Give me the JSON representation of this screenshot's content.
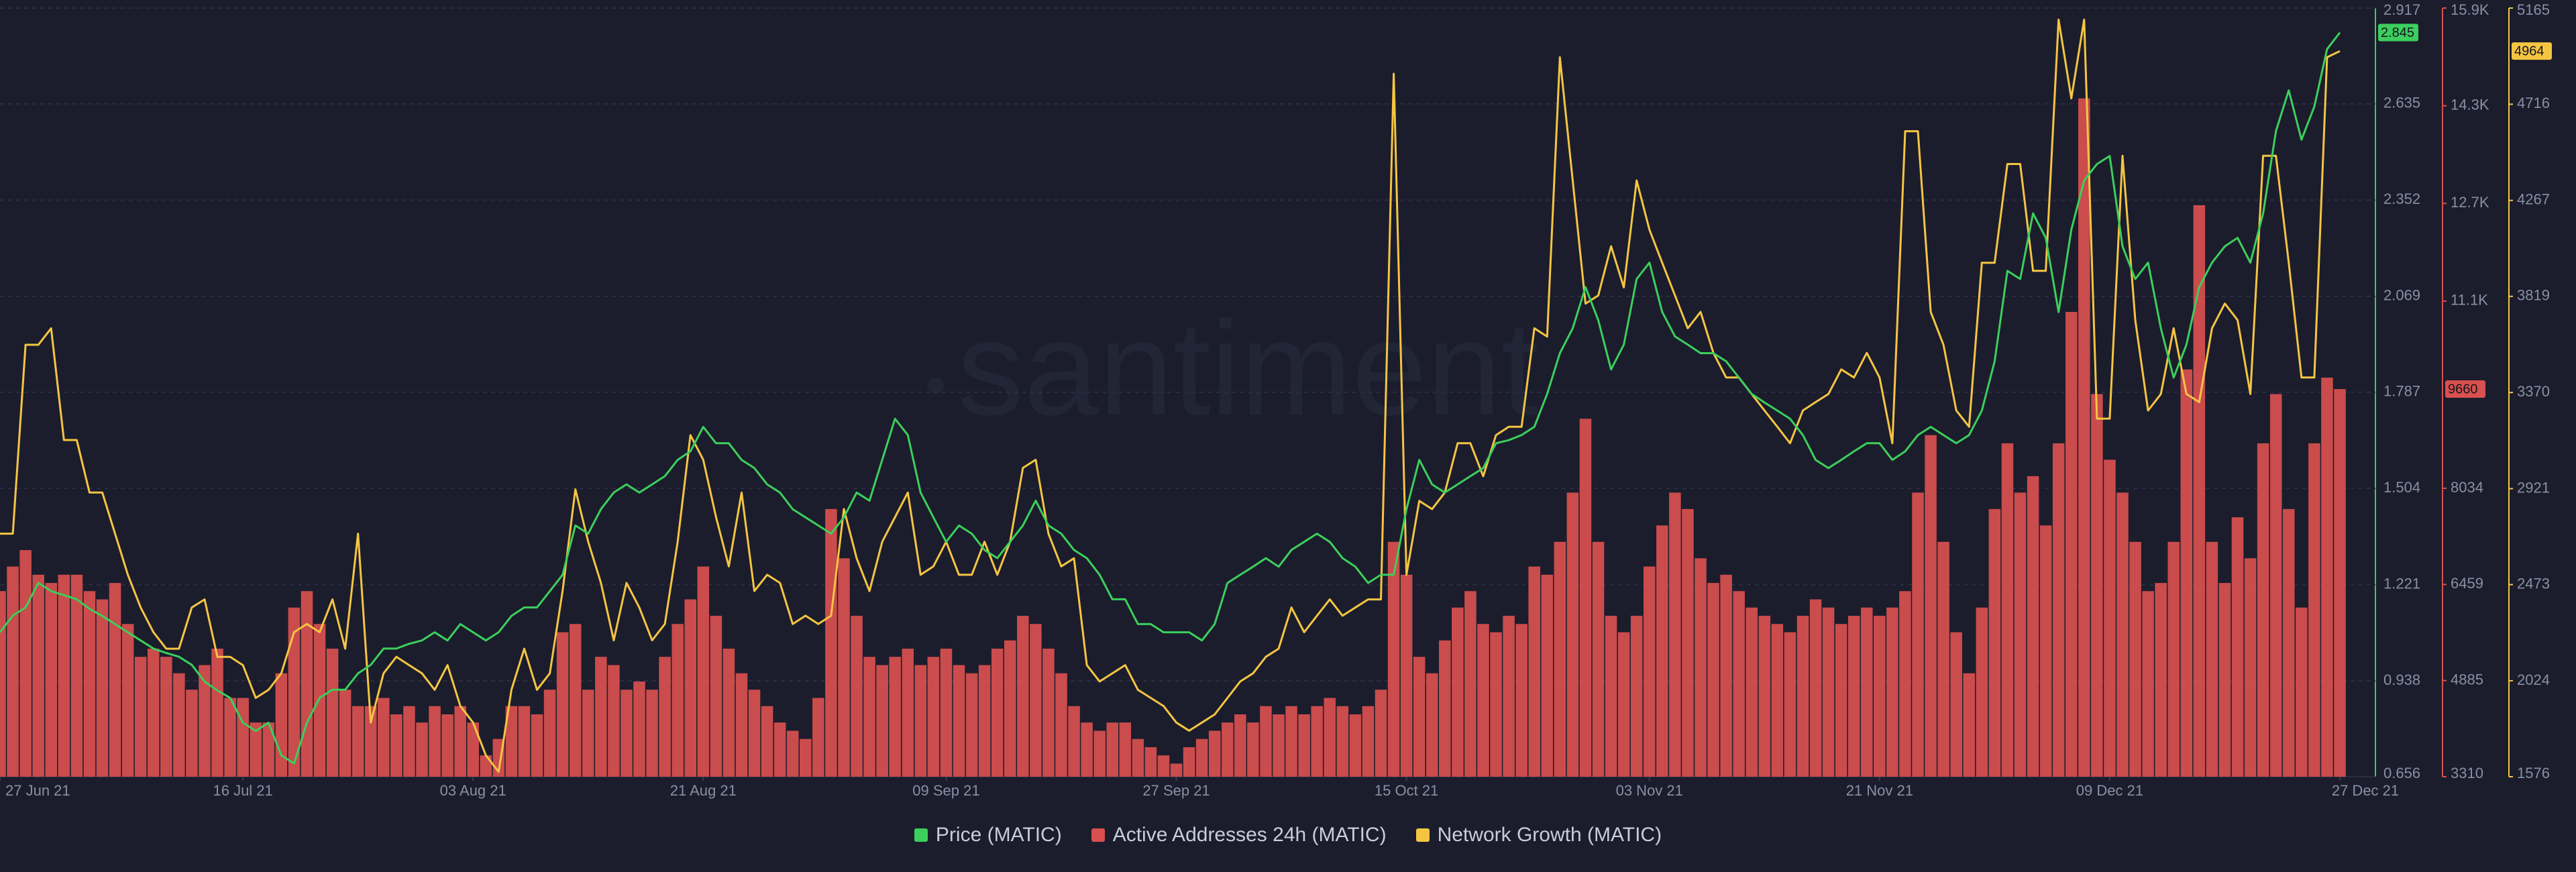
{
  "chart_data": {
    "type": "line",
    "watermark": "santiment",
    "x": [
      "27 Jun 21",
      "28 Jun 21",
      "29 Jun 21",
      "30 Jun 21",
      "01 Jul 21",
      "02 Jul 21",
      "03 Jul 21",
      "04 Jul 21",
      "05 Jul 21",
      "06 Jul 21",
      "07 Jul 21",
      "08 Jul 21",
      "09 Jul 21",
      "10 Jul 21",
      "11 Jul 21",
      "12 Jul 21",
      "13 Jul 21",
      "14 Jul 21",
      "15 Jul 21",
      "16 Jul 21",
      "17 Jul 21",
      "18 Jul 21",
      "19 Jul 21",
      "20 Jul 21",
      "21 Jul 21",
      "22 Jul 21",
      "23 Jul 21",
      "24 Jul 21",
      "25 Jul 21",
      "26 Jul 21",
      "27 Jul 21",
      "28 Jul 21",
      "29 Jul 21",
      "30 Jul 21",
      "31 Jul 21",
      "01 Aug 21",
      "02 Aug 21",
      "03 Aug 21",
      "04 Aug 21",
      "05 Aug 21",
      "06 Aug 21",
      "07 Aug 21",
      "08 Aug 21",
      "09 Aug 21",
      "10 Aug 21",
      "11 Aug 21",
      "12 Aug 21",
      "13 Aug 21",
      "14 Aug 21",
      "15 Aug 21",
      "16 Aug 21",
      "17 Aug 21",
      "18 Aug 21",
      "19 Aug 21",
      "20 Aug 21",
      "21 Aug 21",
      "22 Aug 21",
      "23 Aug 21",
      "24 Aug 21",
      "25 Aug 21",
      "26 Aug 21",
      "27 Aug 21",
      "28 Aug 21",
      "29 Aug 21",
      "30 Aug 21",
      "31 Aug 21",
      "01 Sep 21",
      "02 Sep 21",
      "03 Sep 21",
      "04 Sep 21",
      "05 Sep 21",
      "06 Sep 21",
      "07 Sep 21",
      "08 Sep 21",
      "09 Sep 21",
      "10 Sep 21",
      "11 Sep 21",
      "12 Sep 21",
      "13 Sep 21",
      "14 Sep 21",
      "15 Sep 21",
      "16 Sep 21",
      "17 Sep 21",
      "18 Sep 21",
      "19 Sep 21",
      "20 Sep 21",
      "21 Sep 21",
      "22 Sep 21",
      "23 Sep 21",
      "24 Sep 21",
      "25 Sep 21",
      "26 Sep 21",
      "27 Sep 21",
      "28 Sep 21",
      "29 Sep 21",
      "30 Sep 21",
      "01 Oct 21",
      "02 Oct 21",
      "03 Oct 21",
      "04 Oct 21",
      "05 Oct 21",
      "06 Oct 21",
      "07 Oct 21",
      "08 Oct 21",
      "09 Oct 21",
      "10 Oct 21",
      "11 Oct 21",
      "12 Oct 21",
      "13 Oct 21",
      "14 Oct 21",
      "15 Oct 21",
      "16 Oct 21",
      "17 Oct 21",
      "18 Oct 21",
      "19 Oct 21",
      "20 Oct 21",
      "21 Oct 21",
      "22 Oct 21",
      "23 Oct 21",
      "24 Oct 21",
      "25 Oct 21",
      "26 Oct 21",
      "27 Oct 21",
      "28 Oct 21",
      "29 Oct 21",
      "30 Oct 21",
      "31 Oct 21",
      "01 Nov 21",
      "02 Nov 21",
      "03 Nov 21",
      "04 Nov 21",
      "05 Nov 21",
      "06 Nov 21",
      "07 Nov 21",
      "08 Nov 21",
      "09 Nov 21",
      "10 Nov 21",
      "11 Nov 21",
      "12 Nov 21",
      "13 Nov 21",
      "14 Nov 21",
      "15 Nov 21",
      "16 Nov 21",
      "17 Nov 21",
      "18 Nov 21",
      "19 Nov 21",
      "20 Nov 21",
      "21 Nov 21",
      "22 Nov 21",
      "23 Nov 21",
      "24 Nov 21",
      "25 Nov 21",
      "26 Nov 21",
      "27 Nov 21",
      "28 Nov 21",
      "29 Nov 21",
      "30 Nov 21",
      "01 Dec 21",
      "02 Dec 21",
      "03 Dec 21",
      "04 Dec 21",
      "05 Dec 21",
      "06 Dec 21",
      "07 Dec 21",
      "08 Dec 21",
      "09 Dec 21",
      "10 Dec 21",
      "11 Dec 21",
      "12 Dec 21",
      "13 Dec 21",
      "14 Dec 21",
      "15 Dec 21",
      "16 Dec 21",
      "17 Dec 21",
      "18 Dec 21",
      "19 Dec 21",
      "20 Dec 21",
      "21 Dec 21",
      "22 Dec 21",
      "23 Dec 21",
      "24 Dec 21",
      "25 Dec 21",
      "26 Dec 21",
      "27 Dec 21"
    ],
    "xticks": [
      "27 Jun 21",
      "16 Jul 21",
      "03 Aug 21",
      "21 Aug 21",
      "09 Sep 21",
      "27 Sep 21",
      "15 Oct 21",
      "03 Nov 21",
      "21 Nov 21",
      "09 Dec 21",
      "27 Dec 21"
    ],
    "ylim": [
      0.656,
      2.917
    ],
    "yticks": [
      0.656,
      0.938,
      1.221,
      1.504,
      1.787,
      2.069,
      2.352,
      2.635,
      2.917
    ],
    "y2lim": [
      3310,
      15900
    ],
    "y2ticks": [
      3310,
      4885,
      6459,
      8034,
      {
        "value": 11100,
        "label": "11.1K"
      },
      {
        "value": 12700,
        "label": "12.7K"
      },
      {
        "value": 14300,
        "label": "14.3K"
      },
      {
        "value": 15900,
        "label": "15.9K"
      }
    ],
    "y3lim": [
      1576,
      5165
    ],
    "y3ticks": [
      1576,
      2024,
      2473,
      2921,
      3370,
      3819,
      4267,
      4716,
      5165
    ],
    "grid": true,
    "legend": "bottom",
    "series": [
      {
        "name": "Price (MATIC)",
        "type": "line",
        "axis": "y",
        "color": "#3ccf5c",
        "values": [
          1.081,
          1.13,
          1.154,
          1.226,
          1.202,
          1.19,
          1.178,
          1.15,
          1.129,
          1.105,
          1.081,
          1.057,
          1.033,
          1.02,
          1.009,
          0.985,
          0.936,
          0.91,
          0.888,
          0.815,
          0.791,
          0.815,
          0.719,
          0.695,
          0.815,
          0.888,
          0.912,
          0.912,
          0.96,
          0.985,
          1.033,
          1.033,
          1.047,
          1.057,
          1.081,
          1.057,
          1.105,
          1.081,
          1.057,
          1.081,
          1.129,
          1.154,
          1.154,
          1.202,
          1.25,
          1.395,
          1.371,
          1.443,
          1.492,
          1.516,
          1.492,
          1.516,
          1.54,
          1.588,
          1.613,
          1.685,
          1.637,
          1.637,
          1.588,
          1.564,
          1.516,
          1.492,
          1.443,
          1.419,
          1.395,
          1.371,
          1.419,
          1.492,
          1.468,
          1.588,
          1.709,
          1.661,
          1.492,
          1.419,
          1.347,
          1.395,
          1.371,
          1.323,
          1.299,
          1.347,
          1.395,
          1.468,
          1.395,
          1.371,
          1.323,
          1.299,
          1.25,
          1.178,
          1.178,
          1.105,
          1.105,
          1.081,
          1.081,
          1.081,
          1.057,
          1.105,
          1.226,
          1.25,
          1.274,
          1.299,
          1.274,
          1.323,
          1.347,
          1.371,
          1.347,
          1.299,
          1.274,
          1.226,
          1.25,
          1.25,
          1.443,
          1.588,
          1.516,
          1.492,
          1.516,
          1.54,
          1.564,
          1.637,
          1.646,
          1.661,
          1.685,
          1.782,
          1.902,
          1.975,
          2.096,
          1.999,
          1.854,
          1.927,
          2.12,
          2.168,
          2.023,
          1.951,
          1.927,
          1.902,
          1.902,
          1.878,
          1.83,
          1.782,
          1.757,
          1.733,
          1.709,
          1.661,
          1.588,
          1.564,
          1.588,
          1.613,
          1.637,
          1.637,
          1.588,
          1.613,
          1.661,
          1.685,
          1.661,
          1.637,
          1.661,
          1.733,
          1.878,
          2.144,
          2.12,
          2.313,
          2.241,
          2.023,
          2.265,
          2.41,
          2.458,
          2.482,
          2.216,
          2.12,
          2.168,
          1.975,
          1.83,
          1.927,
          2.096,
          2.168,
          2.216,
          2.241,
          2.168,
          2.313,
          2.555,
          2.675,
          2.53,
          2.627,
          2.796,
          2.845
        ]
      },
      {
        "name": "Active Addresses 24h (MATIC)",
        "type": "bar",
        "axis": "y2",
        "color": "#d9504f",
        "values": [
          6350,
          6753,
          7022,
          6619,
          6484,
          6619,
          6619,
          6350,
          6215,
          6484,
          5812,
          5274,
          5408,
          5274,
          5005,
          4736,
          5139,
          5408,
          4601,
          4601,
          4198,
          4198,
          5005,
          6081,
          6350,
          5812,
          5408,
          4736,
          4467,
          4467,
          4601,
          4332,
          4467,
          4198,
          4467,
          4332,
          4467,
          4198,
          3660,
          3929,
          4467,
          4467,
          4332,
          4736,
          5677,
          5812,
          4736,
          5274,
          5139,
          4736,
          4870,
          4736,
          5274,
          5812,
          6215,
          6753,
          5946,
          5408,
          5005,
          4736,
          4467,
          4198,
          4063,
          3929,
          4601,
          7695,
          6888,
          5946,
          5274,
          5139,
          5274,
          5408,
          5139,
          5274,
          5408,
          5139,
          5005,
          5139,
          5408,
          5543,
          5946,
          5812,
          5408,
          5005,
          4467,
          4198,
          4063,
          4198,
          4198,
          3929,
          3794,
          3660,
          3525,
          3794,
          3929,
          4063,
          4198,
          4332,
          4198,
          4467,
          4332,
          4467,
          4332,
          4467,
          4601,
          4467,
          4332,
          4467,
          4736,
          7157,
          6619,
          5274,
          5005,
          5543,
          6081,
          6350,
          5812,
          5677,
          5946,
          5812,
          6753,
          6619,
          7157,
          7964,
          9174,
          7157,
          5946,
          5677,
          5946,
          6753,
          7426,
          7964,
          7695,
          6888,
          6484,
          6619,
          6350,
          6081,
          5946,
          5812,
          5677,
          5946,
          6215,
          6081,
          5812,
          5946,
          6081,
          5946,
          6081,
          6350,
          7964,
          8905,
          7157,
          5677,
          5005,
          6081,
          7695,
          8771,
          7964,
          8233,
          7426,
          8771,
          10923,
          14420,
          9578,
          8502,
          7964,
          7157,
          6350,
          6484,
          7157,
          9981,
          12671,
          7157,
          6484,
          7560,
          6888,
          8771,
          9578,
          7695,
          6081,
          8771,
          9847,
          9660
        ]
      },
      {
        "name": "Network Growth (MATIC)",
        "type": "line",
        "axis": "y3",
        "color": "#f5c542",
        "values": [
          2711,
          2711,
          3593,
          3593,
          3670,
          3148,
          3148,
          2903,
          2903,
          2711,
          2519,
          2366,
          2251,
          2174,
          2174,
          2366,
          2404,
          2136,
          2136,
          2097,
          1944,
          1982,
          2059,
          2251,
          2289,
          2251,
          2404,
          2174,
          2711,
          1829,
          2059,
          2136,
          2097,
          2059,
          1982,
          2097,
          1906,
          1829,
          1676,
          1599,
          1982,
          2174,
          1982,
          2059,
          2443,
          2918,
          2673,
          2481,
          2213,
          2481,
          2366,
          2213,
          2289,
          2673,
          3171,
          3056,
          2788,
          2558,
          2903,
          2443,
          2519,
          2481,
          2289,
          2328,
          2289,
          2328,
          2826,
          2596,
          2443,
          2673,
          2788,
          2903,
          2519,
          2558,
          2673,
          2519,
          2519,
          2673,
          2519,
          2673,
          3018,
          3056,
          2711,
          2558,
          2596,
          2097,
          2021,
          2059,
          2097,
          1982,
          1944,
          1906,
          1829,
          1791,
          1829,
          1867,
          1944,
          2021,
          2059,
          2136,
          2174,
          2366,
          2251,
          2328,
          2404,
          2328,
          2366,
          2404,
          2404,
          4858,
          2519,
          2864,
          2826,
          2903,
          3133,
          3133,
          2979,
          3171,
          3210,
          3210,
          3670,
          3631,
          4935,
          4360,
          3785,
          3823,
          4053,
          3861,
          4360,
          4130,
          3976,
          3823,
          3670,
          3746,
          3555,
          3440,
          3440,
          3363,
          3286,
          3210,
          3133,
          3286,
          3325,
          3363,
          3478,
          3440,
          3555,
          3440,
          3133,
          4590,
          4590,
          3746,
          3593,
          3286,
          3210,
          3976,
          3976,
          4437,
          4437,
          3938,
          3938,
          5111,
          4743,
          5111,
          3248,
          3248,
          4475,
          3708,
          3286,
          3363,
          3670,
          3363,
          3325,
          3670,
          3785,
          3708,
          3363,
          4475,
          4475,
          3976,
          3440,
          3440,
          4935,
          4964
        ]
      }
    ]
  }
}
